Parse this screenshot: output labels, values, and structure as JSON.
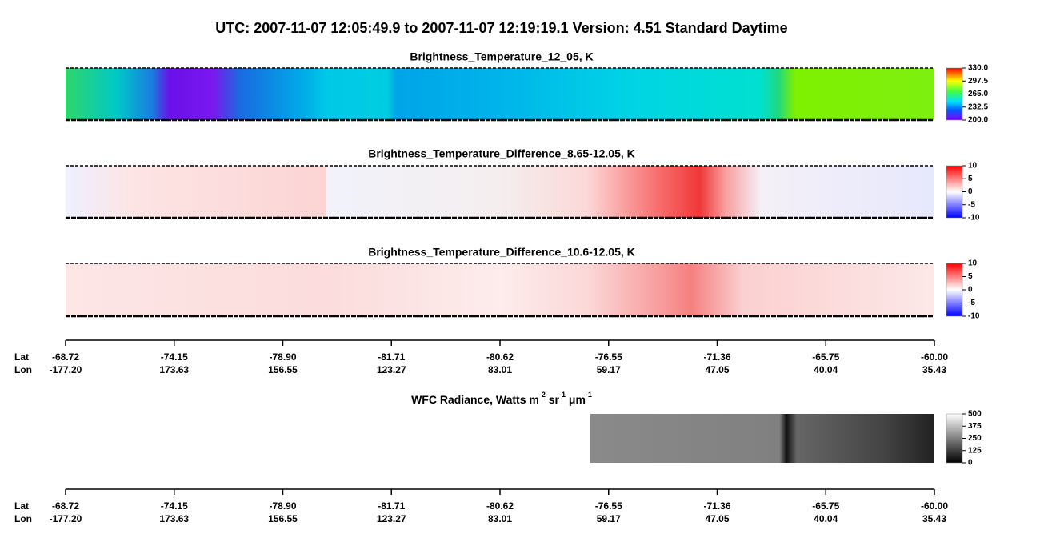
{
  "title": "UTC:  2007-11-07   12:05:49.9  to  2007-11-07   12:19:19.1    Version: 4.51  Standard Daytime",
  "chart_data": [
    {
      "type": "heatmap",
      "title": "Brightness_Temperature_12_05, K",
      "clim": [
        200,
        330
      ],
      "cticks": [
        {
          "value": 330,
          "label": "330.0"
        },
        {
          "value": 297.5,
          "label": "297.5"
        },
        {
          "value": 265,
          "label": "265.0"
        },
        {
          "value": 232.5,
          "label": "232.5"
        },
        {
          "value": 200,
          "label": "200.0"
        }
      ]
    },
    {
      "type": "heatmap",
      "title": "Brightness_Temperature_Difference_8.65-12.05, K",
      "clim": [
        -10,
        10
      ],
      "cticks": [
        10,
        5,
        0,
        -5,
        -10
      ]
    },
    {
      "type": "heatmap",
      "title": "Brightness_Temperature_Difference_10.6-12.05, K",
      "clim": [
        -10,
        10
      ],
      "cticks": [
        10,
        5,
        0,
        -5,
        -10
      ]
    },
    {
      "type": "heatmap",
      "title_parts": [
        "WFC Radiance, Watts m",
        "-2",
        " sr",
        "-1",
        " μm",
        "-1"
      ],
      "clim": [
        0,
        500
      ],
      "cticks": [
        500,
        375,
        250,
        125,
        0
      ]
    }
  ],
  "axes": [
    {
      "lat_label": "Lat",
      "lon_label": "Lon",
      "lat": [
        "-68.72",
        "-74.15",
        "-78.90",
        "-81.71",
        "-80.62",
        "-76.55",
        "-71.36",
        "-65.75",
        "-60.00"
      ],
      "lon": [
        "-177.20",
        "173.63",
        "156.55",
        "123.27",
        "83.01",
        "59.17",
        "47.05",
        "40.04",
        "35.43"
      ]
    },
    {
      "lat_label": "Lat",
      "lon_label": "Lon",
      "lat": [
        "-68.72",
        "-74.15",
        "-78.90",
        "-81.71",
        "-80.62",
        "-76.55",
        "-71.36",
        "-65.75",
        "-60.00"
      ],
      "lon": [
        "-177.20",
        "173.63",
        "156.55",
        "123.27",
        "83.01",
        "59.17",
        "47.05",
        "40.04",
        "35.43"
      ]
    }
  ]
}
